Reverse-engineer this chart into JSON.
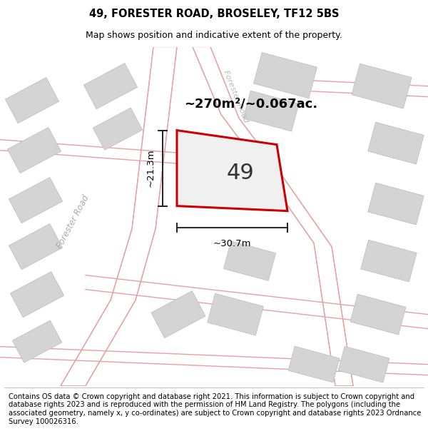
{
  "title": "49, FORESTER ROAD, BROSELEY, TF12 5BS",
  "subtitle": "Map shows position and indicative extent of the property.",
  "footer": "Contains OS data © Crown copyright and database right 2021. This information is subject to Crown copyright and database rights 2023 and is reproduced with the permission of HM Land Registry. The polygons (including the associated geometry, namely x, y co-ordinates) are subject to Crown copyright and database rights 2023 Ordnance Survey 100026316.",
  "area_label": "~270m²/~0.067ac.",
  "width_label": "~30.7m",
  "height_label": "~21.3m",
  "plot_label": "49",
  "road_color": "#e8a0a0",
  "building_fill": "#d4d4d4",
  "building_edge": "#c0c0c0",
  "plot_edge_color": "#cc0000",
  "dim_line_color": "#222222",
  "title_fontsize": 10.5,
  "subtitle_fontsize": 9,
  "footer_fontsize": 7.2
}
